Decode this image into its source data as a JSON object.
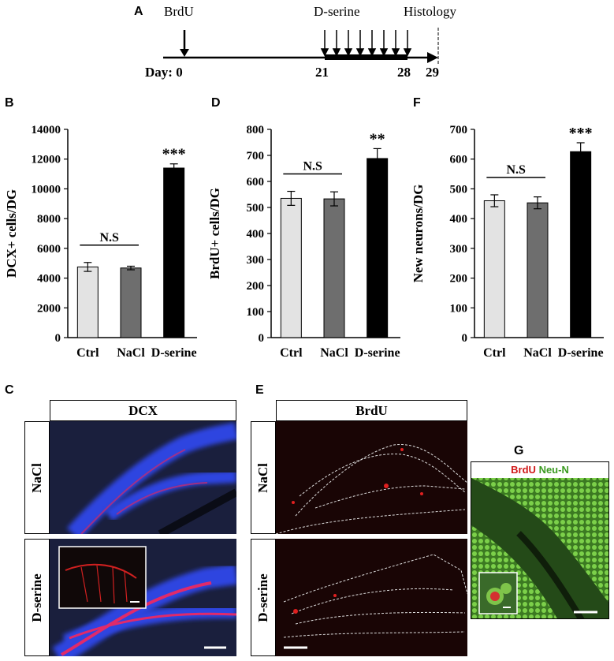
{
  "panels": {
    "A": "A",
    "B": "B",
    "C": "C",
    "D": "D",
    "E": "E",
    "F": "F",
    "G": "G"
  },
  "timeline": {
    "brdu_label": "BrdU",
    "dserine_label": "D-serine",
    "histology_label": "Histology",
    "day_prefix": "Day: 0",
    "day_21": "21",
    "day_28": "28",
    "day_29": "29"
  },
  "chart_data": [
    {
      "type": "bar",
      "panel": "B",
      "categories": [
        "Ctrl",
        "NaCl",
        "D-serine"
      ],
      "values": [
        4750,
        4680,
        11400
      ],
      "errors": [
        300,
        120,
        280
      ],
      "ylabel": "DCX+ cells/DG",
      "ylim": [
        0,
        14000
      ],
      "yticks": [
        0,
        2000,
        4000,
        6000,
        8000,
        10000,
        12000,
        14000
      ],
      "bar_colors": [
        "#e3e3e3",
        "#6e6e6e",
        "#000000"
      ],
      "significance": {
        "bracket": "N.S",
        "top": "***"
      }
    },
    {
      "type": "bar",
      "panel": "D",
      "categories": [
        "Ctrl",
        "NaCl",
        "D-serine"
      ],
      "values": [
        535,
        533,
        688
      ],
      "errors": [
        27,
        27,
        38
      ],
      "ylabel": "BrdU+ cells/DG",
      "ylim": [
        0,
        800
      ],
      "yticks": [
        0,
        100,
        200,
        300,
        400,
        500,
        600,
        700,
        800
      ],
      "bar_colors": [
        "#e3e3e3",
        "#6e6e6e",
        "#000000"
      ],
      "significance": {
        "bracket": "N.S",
        "top": "**"
      }
    },
    {
      "type": "bar",
      "panel": "F",
      "categories": [
        "Ctrl",
        "NaCl",
        "D-serine"
      ],
      "values": [
        460,
        453,
        625
      ],
      "errors": [
        20,
        20,
        30
      ],
      "ylabel": "New neurons/DG",
      "ylim": [
        0,
        700
      ],
      "yticks": [
        0,
        100,
        200,
        300,
        400,
        500,
        600,
        700
      ],
      "bar_colors": [
        "#e3e3e3",
        "#6e6e6e",
        "#000000"
      ],
      "significance": {
        "bracket": "N.S",
        "top": "***"
      }
    }
  ],
  "micrographs": {
    "dcx_header": "DCX",
    "brdu_header": "BrdU",
    "row_nacl": "NaCl",
    "row_dserine": "D-serine",
    "g_label_red": "BrdU",
    "g_label_green": "Neu-N",
    "colors": {
      "dcx_blue": "#2a3fd8",
      "dcx_red": "#e02a6a",
      "tissue_dark": "#1a1f3a",
      "brdu_bg": "#1a0606",
      "neun_green": "#6fc23a",
      "brdu_red": "#e02020"
    }
  }
}
